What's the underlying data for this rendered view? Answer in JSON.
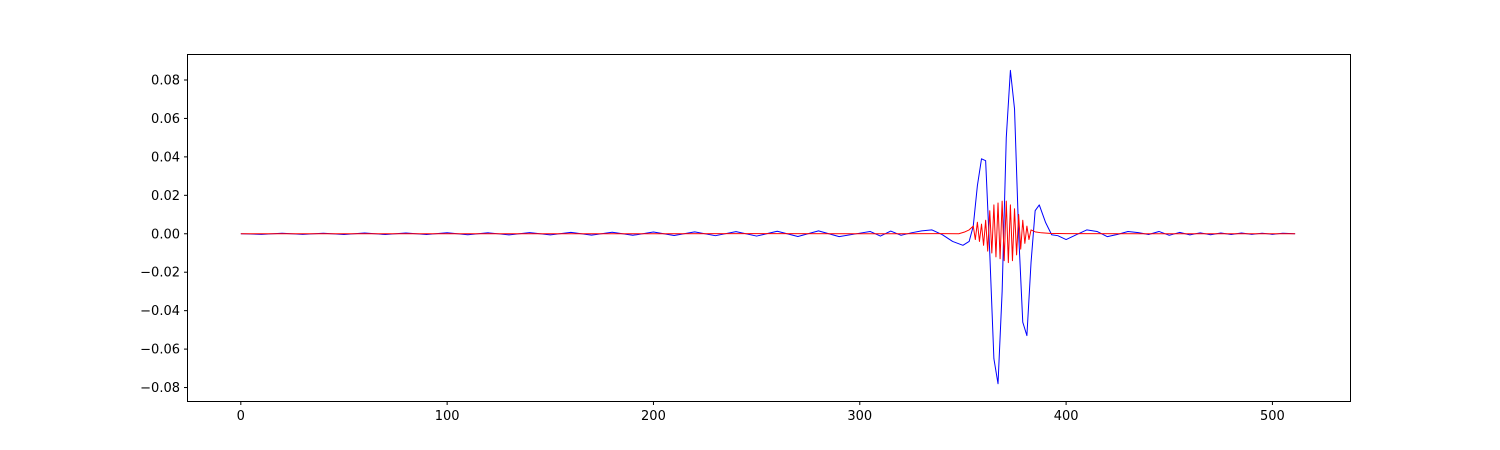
{
  "chart_data": {
    "type": "line",
    "title": "",
    "xlabel": "",
    "ylabel": "",
    "xlim": [
      -25.6,
      537.6
    ],
    "ylim": [
      -0.087,
      0.093
    ],
    "xticks": [
      0,
      100,
      200,
      300,
      400,
      500
    ],
    "xtick_labels": [
      "0",
      "100",
      "200",
      "300",
      "400",
      "500"
    ],
    "yticks": [
      -0.08,
      -0.06,
      -0.04,
      -0.02,
      0.0,
      0.02,
      0.04,
      0.06,
      0.08
    ],
    "ytick_labels": [
      "−0.08",
      "−0.06",
      "−0.04",
      "−0.02",
      "0.00",
      "0.02",
      "0.04",
      "0.06",
      "0.08"
    ],
    "grid": false,
    "series": [
      {
        "color": "#0000ff",
        "x": [
          0,
          10,
          20,
          30,
          40,
          50,
          60,
          70,
          80,
          90,
          100,
          110,
          120,
          130,
          140,
          150,
          160,
          170,
          180,
          190,
          200,
          210,
          220,
          230,
          240,
          250,
          260,
          270,
          280,
          290,
          300,
          305,
          310,
          315,
          320,
          325,
          330,
          335,
          340,
          345,
          350,
          353,
          355,
          357,
          359,
          361,
          363,
          365,
          367,
          369,
          371,
          373,
          375,
          377,
          379,
          381,
          383,
          385,
          387,
          390,
          393,
          396,
          400,
          405,
          410,
          415,
          420,
          425,
          430,
          435,
          440,
          445,
          450,
          455,
          460,
          465,
          470,
          475,
          480,
          485,
          490,
          495,
          500,
          505,
          511
        ],
        "y": [
          0.0,
          -0.0003,
          0.0003,
          -0.0003,
          0.0003,
          -0.0004,
          0.0004,
          -0.0004,
          0.0004,
          -0.0004,
          0.0005,
          -0.0005,
          0.0005,
          -0.0006,
          0.0006,
          -0.0006,
          0.0007,
          -0.0007,
          0.0008,
          -0.0008,
          0.0009,
          -0.0009,
          0.001,
          -0.001,
          0.0011,
          -0.0012,
          0.0013,
          -0.0014,
          0.0015,
          -0.0015,
          0.0003,
          0.0012,
          -0.0012,
          0.0014,
          -0.0008,
          0.0005,
          0.0015,
          0.002,
          -0.0005,
          -0.004,
          -0.006,
          -0.004,
          0.004,
          0.025,
          0.039,
          0.038,
          -0.01,
          -0.065,
          -0.078,
          -0.03,
          0.05,
          0.085,
          0.065,
          0.0,
          -0.046,
          -0.053,
          -0.015,
          0.012,
          0.015,
          0.006,
          -0.0005,
          -0.001,
          -0.003,
          -0.0005,
          0.002,
          0.0012,
          -0.0015,
          -0.0003,
          0.0012,
          0.0006,
          -0.0004,
          0.0012,
          -0.0008,
          0.0007,
          -0.0006,
          0.0005,
          -0.0005,
          0.0004,
          -0.0004,
          0.0004,
          -0.0003,
          0.0003,
          -0.0003,
          0.0003,
          0.0
        ]
      },
      {
        "color": "#ff0000",
        "x": [
          0,
          50,
          100,
          150,
          200,
          250,
          300,
          340,
          348,
          351,
          353,
          355,
          356,
          357,
          358,
          359,
          360,
          361,
          362,
          363,
          364,
          365,
          366,
          367,
          368,
          369,
          370,
          371,
          372,
          373,
          374,
          375,
          376,
          377,
          378,
          379,
          380,
          381,
          382,
          383,
          385,
          388,
          392,
          400,
          450,
          511
        ],
        "y": [
          0.0,
          0.0,
          0.0,
          0.0,
          0.0,
          0.0001,
          0.0,
          0.0001,
          0.0,
          0.001,
          0.002,
          0.004,
          -0.003,
          0.006,
          -0.004,
          0.005,
          -0.006,
          0.007,
          -0.009,
          0.012,
          -0.01,
          0.015,
          -0.012,
          0.016,
          -0.013,
          0.017,
          -0.014,
          0.017,
          -0.015,
          0.015,
          -0.014,
          0.013,
          -0.011,
          0.01,
          -0.008,
          0.007,
          -0.005,
          0.004,
          -0.003,
          0.002,
          0.001,
          0.0005,
          0.0002,
          0.0001,
          0.0,
          0.0
        ]
      }
    ]
  }
}
